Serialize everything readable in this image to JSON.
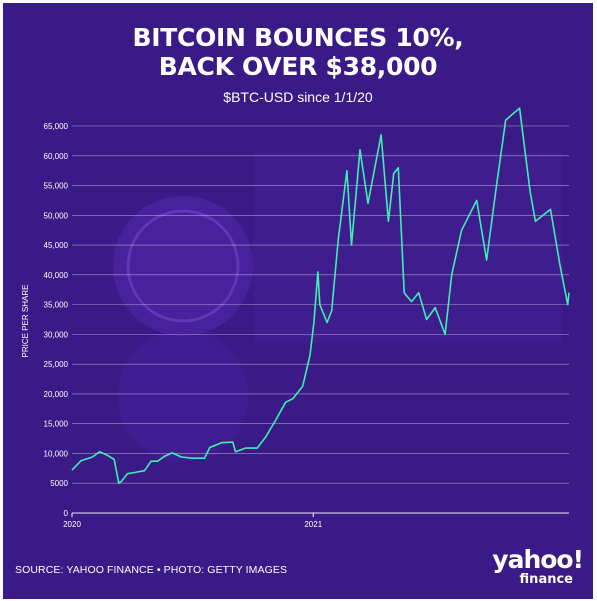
{
  "title_line1": "BITCOIN BOUNCES 10%,",
  "title_line2": "BACK OVER $38,000",
  "source": "SOURCE: YAHOO FINANCE • PHOTO: GETTY IMAGES",
  "logo": {
    "word": "yahoo!",
    "sub": "finance"
  },
  "colors": {
    "background": "#3a1a86",
    "line": "#3cf0b0",
    "grid": "#ffffff",
    "text": "#ffffff"
  },
  "chart_data": {
    "type": "line",
    "title": "BITCOIN BOUNCES 10%, BACK OVER $38,000",
    "subtitle": "$BTC-USD since 1/1/20",
    "xlabel": "",
    "ylabel": "PRICE PER SHARE",
    "ylim": [
      0,
      65000
    ],
    "y_ticks": [
      "0",
      "5000",
      "10,000",
      "15,000",
      "20,000",
      "25,000",
      "30,000",
      "35,000",
      "40,000",
      "45,000",
      "50,000",
      "55,000",
      "60,000",
      "65,000"
    ],
    "x_ticks": [
      {
        "label": "2020",
        "x": "2020-01-01"
      },
      {
        "label": "2021",
        "x": "2021-01-01"
      }
    ],
    "xlim": [
      "2020-01-01",
      "2022-01-24"
    ],
    "grid": true,
    "series": [
      {
        "points": [
          [
            "2020-01-01",
            7200
          ],
          [
            "2020-01-15",
            8800
          ],
          [
            "2020-02-01",
            9400
          ],
          [
            "2020-02-12",
            10300
          ],
          [
            "2020-02-25",
            9600
          ],
          [
            "2020-03-05",
            9000
          ],
          [
            "2020-03-12",
            5000
          ],
          [
            "2020-03-16",
            5300
          ],
          [
            "2020-03-25",
            6600
          ],
          [
            "2020-04-05",
            6800
          ],
          [
            "2020-04-20",
            7100
          ],
          [
            "2020-04-30",
            8700
          ],
          [
            "2020-05-10",
            8700
          ],
          [
            "2020-05-20",
            9500
          ],
          [
            "2020-06-01",
            10100
          ],
          [
            "2020-06-15",
            9400
          ],
          [
            "2020-07-01",
            9200
          ],
          [
            "2020-07-20",
            9200
          ],
          [
            "2020-07-28",
            11000
          ],
          [
            "2020-08-15",
            11800
          ],
          [
            "2020-09-01",
            11900
          ],
          [
            "2020-09-05",
            10300
          ],
          [
            "2020-09-20",
            10900
          ],
          [
            "2020-10-08",
            10900
          ],
          [
            "2020-10-21",
            12800
          ],
          [
            "2020-11-05",
            15600
          ],
          [
            "2020-11-20",
            18600
          ],
          [
            "2020-12-01",
            19200
          ],
          [
            "2020-12-16",
            21300
          ],
          [
            "2020-12-27",
            26500
          ],
          [
            "2021-01-02",
            32000
          ],
          [
            "2021-01-08",
            40500
          ],
          [
            "2021-01-11",
            35000
          ],
          [
            "2021-01-22",
            32000
          ],
          [
            "2021-01-29",
            34000
          ],
          [
            "2021-02-08",
            46000
          ],
          [
            "2021-02-21",
            57500
          ],
          [
            "2021-02-28",
            45000
          ],
          [
            "2021-03-13",
            61000
          ],
          [
            "2021-03-25",
            52000
          ],
          [
            "2021-04-14",
            63500
          ],
          [
            "2021-04-25",
            49000
          ],
          [
            "2021-05-03",
            57000
          ],
          [
            "2021-05-10",
            58000
          ],
          [
            "2021-05-19",
            37000
          ],
          [
            "2021-05-30",
            35500
          ],
          [
            "2021-06-10",
            37000
          ],
          [
            "2021-06-22",
            32500
          ],
          [
            "2021-07-05",
            34500
          ],
          [
            "2021-07-20",
            30000
          ],
          [
            "2021-07-30",
            40000
          ],
          [
            "2021-08-14",
            47500
          ],
          [
            "2021-09-06",
            52500
          ],
          [
            "2021-09-21",
            42500
          ],
          [
            "2021-10-06",
            55000
          ],
          [
            "2021-10-20",
            66000
          ],
          [
            "2021-11-10",
            68000
          ],
          [
            "2021-11-26",
            54000
          ],
          [
            "2021-12-04",
            49000
          ],
          [
            "2021-12-27",
            51000
          ],
          [
            "2022-01-10",
            41800
          ],
          [
            "2022-01-22",
            35000
          ],
          [
            "2022-01-24",
            37000
          ]
        ]
      }
    ]
  }
}
